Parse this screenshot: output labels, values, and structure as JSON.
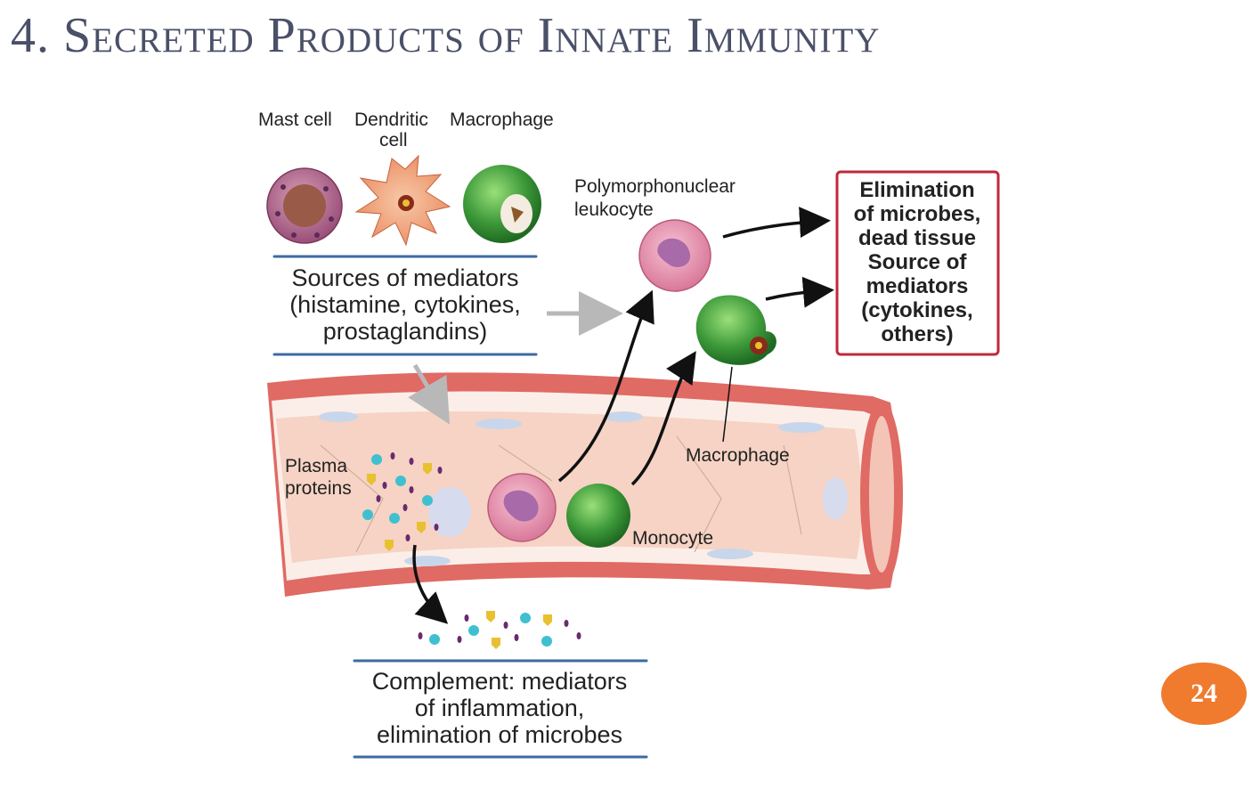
{
  "slide": {
    "title": "4. Secreted Products of Innate Immunity",
    "page_number": "24"
  },
  "diagram": {
    "cell_labels": {
      "mast_cell": "Mast cell",
      "dendritic_line1": "Dendritic",
      "dendritic_line2": "cell",
      "macrophage_top": "Macrophage",
      "pmn_line1": "Polymorphonuclear",
      "pmn_line2": "leukocyte",
      "macrophage_vessel": "Macrophage",
      "monocyte": "Monocyte",
      "plasma_line1": "Plasma",
      "plasma_line2": "proteins"
    },
    "sources_box": {
      "line1": "Sources of mediators",
      "line2": "(histamine, cytokines,",
      "line3": "prostaglandins)"
    },
    "complement_box": {
      "line1": "Complement: mediators",
      "line2": "of inflammation,",
      "line3": "elimination of microbes"
    },
    "outcome_box": {
      "line1": "Elimination",
      "line2": "of microbes,",
      "line3": "dead tissue",
      "line4": "Source of",
      "line5": "mediators",
      "line6": "(cytokines,",
      "line7": "others)",
      "border_color": "#c0283a"
    },
    "colors": {
      "vessel_wall": "#e8706a",
      "vessel_lumen": "#f6d3c4",
      "pmn": "#d9789a",
      "macrophage": "#3e9a3a",
      "protein_cyan": "#3fc0d0",
      "protein_yellow": "#e8c030",
      "protein_purple": "#6a2a70"
    }
  }
}
